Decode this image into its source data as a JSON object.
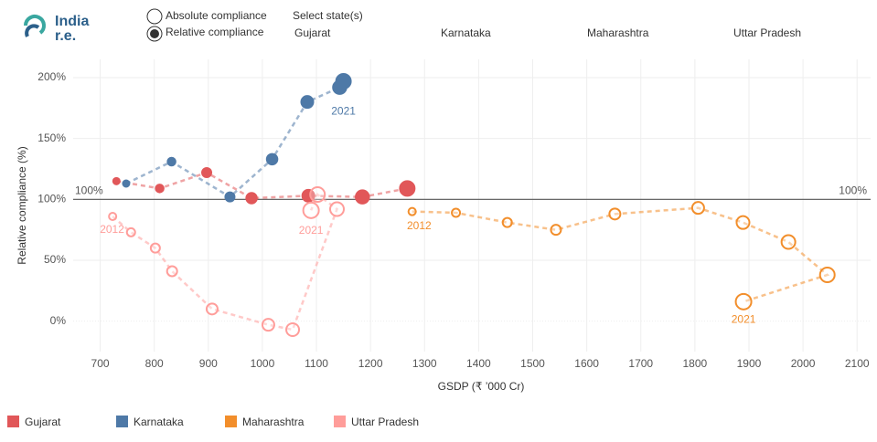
{
  "header": {
    "logo_line1": "India",
    "logo_line2": "r.e.",
    "options": [
      "Absolute compliance",
      "Relative compliance"
    ],
    "selected_option": 1,
    "select_label": "Select state(s)",
    "states": [
      "Gujarat",
      "Karnataka",
      "Maharashtra",
      "Uttar Pradesh"
    ]
  },
  "chart_data": {
    "type": "scatter",
    "xlabel": "GSDP (₹ ’000 Cr)",
    "ylabel": "Relative compliance (%)",
    "xlim": [
      650,
      2125
    ],
    "ylim": [
      -25,
      215
    ],
    "xticks": [
      700,
      800,
      900,
      1000,
      1100,
      1200,
      1300,
      1400,
      1500,
      1600,
      1700,
      1800,
      1900,
      2000,
      2100
    ],
    "yticks": [
      {
        "value": 0,
        "label": "0%"
      },
      {
        "value": 50,
        "label": "50%"
      },
      {
        "value": 100,
        "label": "100%"
      },
      {
        "value": 150,
        "label": "150%"
      },
      {
        "value": 200,
        "label": "200%"
      }
    ],
    "grid": true,
    "reference_line": {
      "value": 100,
      "label": "100%"
    },
    "series": [
      {
        "name": "Gujarat",
        "color": "#e15759",
        "filled": true,
        "x": [
          730,
          810,
          897,
          980,
          1085,
          1185,
          1268
        ],
        "values": [
          115,
          109,
          122,
          101,
          103,
          102,
          109
        ]
      },
      {
        "name": "Karnataka",
        "color": "#4e79a7",
        "filled": true,
        "x": [
          748,
          832,
          940,
          1018,
          1083,
          1143,
          1150
        ],
        "values": [
          113,
          131,
          102,
          133,
          180,
          192,
          197
        ]
      },
      {
        "name": "Maharashtra",
        "color": "#f28e2b",
        "filled": false,
        "x": [
          1277,
          1358,
          1453,
          1543,
          1652,
          1806,
          1889,
          1973,
          2045,
          1890
        ],
        "values": [
          90,
          89,
          81,
          75,
          88,
          93,
          81,
          65,
          38,
          16
        ]
      },
      {
        "name": "Uttar Pradesh",
        "color": "#ff9d9a",
        "filled": false,
        "x": [
          723,
          757,
          802,
          833,
          907,
          1011,
          1056,
          1138,
          1102,
          1090
        ],
        "values": [
          86,
          73,
          60,
          41,
          10,
          -3,
          -7,
          92,
          104,
          91
        ]
      }
    ],
    "annotations": [
      {
        "text": "2021",
        "x": 1150,
        "y": 172,
        "series": 1
      },
      {
        "text": "2012",
        "x": 1290,
        "y": 78,
        "series": 2
      },
      {
        "text": "2021",
        "x": 1890,
        "y": 1,
        "series": 2
      },
      {
        "text": "2012",
        "x": 722,
        "y": 75,
        "series": 3
      },
      {
        "text": "2021",
        "x": 1090,
        "y": 74,
        "series": 3
      }
    ]
  }
}
